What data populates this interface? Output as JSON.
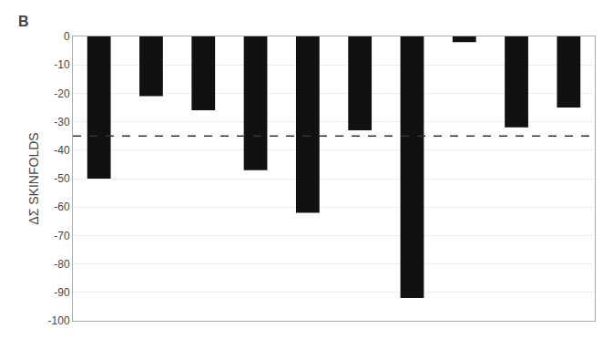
{
  "chart_data": {
    "type": "bar",
    "panel_label": "B",
    "ylabel": "ΔΣ SKINFOLDS",
    "categories": [
      null,
      null,
      null,
      null,
      null,
      null,
      null,
      null,
      null,
      null
    ],
    "values": [
      -50,
      -21,
      -26,
      -47,
      -62,
      -33,
      -92,
      -2,
      -32,
      -25
    ],
    "color": "#111111",
    "reference_line": {
      "value": -35,
      "color": "#333333",
      "line_style": "dashed"
    },
    "ylim": [
      -100,
      0
    ],
    "yticks": [
      0,
      -10,
      -20,
      -30,
      -40,
      -50,
      -60,
      -70,
      -80,
      -90,
      -100
    ],
    "grid": true,
    "tick_labels": "y"
  }
}
